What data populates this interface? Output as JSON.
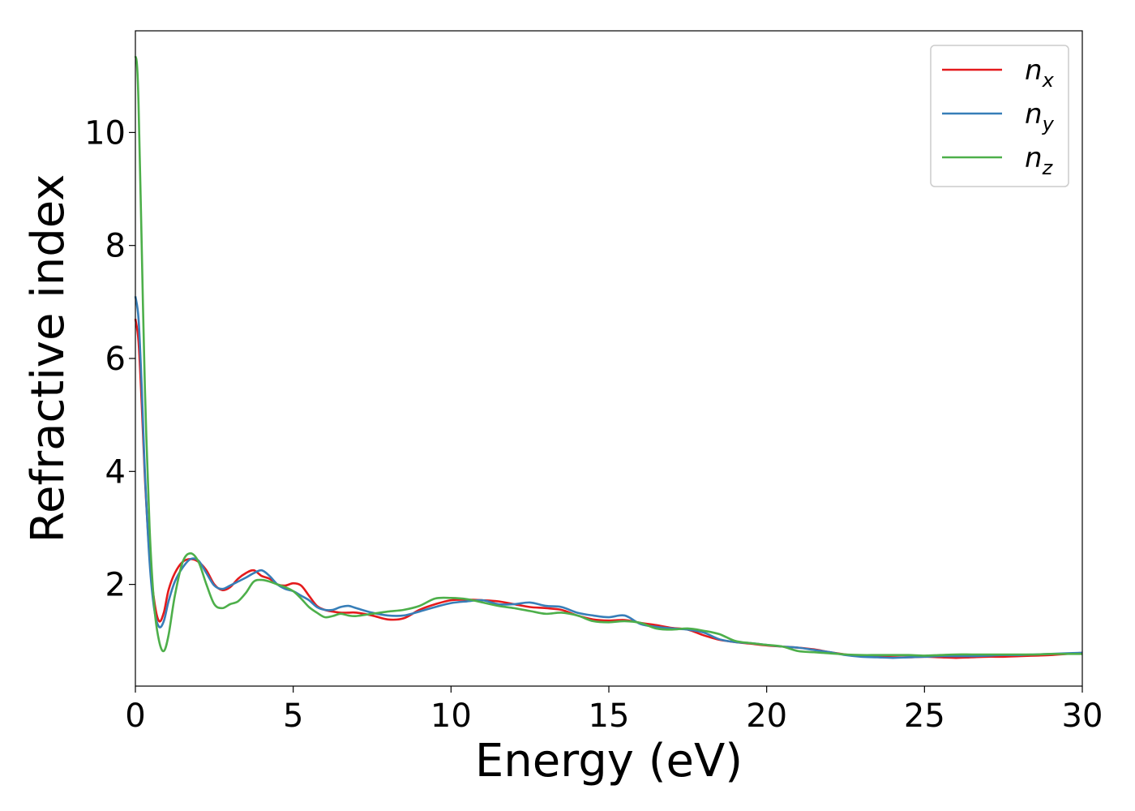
{
  "chart_data": {
    "type": "line",
    "xlabel": "Energy (eV)",
    "ylabel": "Refractive index",
    "xlim": [
      0,
      30
    ],
    "ylim": [
      0.2,
      11.8
    ],
    "xticks": [
      0,
      5,
      10,
      15,
      20,
      25,
      30
    ],
    "yticks": [
      2,
      4,
      6,
      8,
      10
    ],
    "grid": false,
    "legend_position": "top-right",
    "series": [
      {
        "name": "n_x",
        "label_main": "n",
        "label_sub": "x",
        "color": "#e41a1c",
        "x": [
          0,
          0.1,
          0.2,
          0.3,
          0.45,
          0.6,
          0.75,
          0.9,
          1.05,
          1.25,
          1.5,
          1.75,
          2.0,
          2.25,
          2.5,
          2.75,
          3.0,
          3.25,
          3.5,
          3.75,
          4.0,
          4.25,
          4.5,
          4.75,
          5.0,
          5.25,
          5.5,
          5.75,
          6.0,
          6.25,
          6.5,
          6.75,
          7.0,
          7.5,
          8.0,
          8.5,
          9.0,
          9.5,
          10.0,
          10.5,
          11.0,
          11.5,
          12.0,
          12.5,
          13.0,
          13.5,
          14.0,
          14.5,
          15.0,
          15.5,
          16.0,
          16.5,
          17.0,
          17.5,
          18.0,
          18.5,
          19.0,
          19.5,
          20.0,
          20.5,
          21.0,
          21.5,
          22.0,
          22.5,
          23.0,
          23.5,
          24.0,
          24.5,
          25.0,
          25.5,
          26.0,
          26.5,
          27.0,
          27.5,
          28.0,
          28.5,
          29.0,
          29.5,
          30.0
        ],
        "y": [
          6.7,
          6.3,
          5.2,
          3.9,
          2.5,
          1.7,
          1.35,
          1.5,
          1.9,
          2.2,
          2.4,
          2.45,
          2.4,
          2.25,
          2.0,
          1.9,
          1.95,
          2.1,
          2.2,
          2.25,
          2.15,
          2.1,
          2.0,
          1.98,
          2.02,
          1.98,
          1.8,
          1.62,
          1.55,
          1.52,
          1.5,
          1.5,
          1.5,
          1.45,
          1.38,
          1.4,
          1.55,
          1.65,
          1.72,
          1.73,
          1.72,
          1.7,
          1.65,
          1.6,
          1.58,
          1.55,
          1.45,
          1.38,
          1.36,
          1.37,
          1.32,
          1.28,
          1.23,
          1.2,
          1.1,
          1.02,
          0.98,
          0.95,
          0.92,
          0.9,
          0.88,
          0.85,
          0.8,
          0.76,
          0.74,
          0.72,
          0.71,
          0.71,
          0.72,
          0.71,
          0.7,
          0.71,
          0.72,
          0.72,
          0.73,
          0.74,
          0.75,
          0.77,
          0.79
        ]
      },
      {
        "name": "n_y",
        "label_main": "n",
        "label_sub": "y",
        "color": "#377eb8",
        "x": [
          0,
          0.1,
          0.2,
          0.3,
          0.45,
          0.6,
          0.75,
          0.9,
          1.05,
          1.25,
          1.5,
          1.75,
          2.0,
          2.25,
          2.5,
          2.75,
          3.0,
          3.25,
          3.5,
          3.75,
          4.0,
          4.25,
          4.5,
          4.75,
          5.0,
          5.25,
          5.5,
          5.75,
          6.0,
          6.25,
          6.5,
          6.75,
          7.0,
          7.5,
          8.0,
          8.5,
          9.0,
          9.5,
          10.0,
          10.5,
          11.0,
          11.5,
          12.0,
          12.5,
          13.0,
          13.5,
          14.0,
          14.5,
          15.0,
          15.5,
          16.0,
          16.5,
          17.0,
          17.5,
          18.0,
          18.5,
          19.0,
          19.5,
          20.0,
          20.5,
          21.0,
          21.5,
          22.0,
          22.5,
          23.0,
          23.5,
          24.0,
          24.5,
          25.0,
          25.5,
          26.0,
          26.5,
          27.0,
          27.5,
          28.0,
          28.5,
          29.0,
          29.5,
          30.0
        ],
        "y": [
          7.1,
          6.7,
          5.5,
          4.0,
          2.4,
          1.55,
          1.25,
          1.35,
          1.7,
          2.05,
          2.3,
          2.45,
          2.42,
          2.2,
          1.98,
          1.92,
          1.98,
          2.05,
          2.12,
          2.2,
          2.25,
          2.15,
          2.0,
          1.92,
          1.88,
          1.8,
          1.72,
          1.6,
          1.55,
          1.55,
          1.6,
          1.62,
          1.58,
          1.5,
          1.45,
          1.45,
          1.52,
          1.6,
          1.67,
          1.7,
          1.72,
          1.65,
          1.65,
          1.68,
          1.62,
          1.6,
          1.5,
          1.45,
          1.42,
          1.45,
          1.3,
          1.25,
          1.22,
          1.2,
          1.15,
          1.03,
          0.98,
          0.96,
          0.93,
          0.9,
          0.88,
          0.84,
          0.8,
          0.75,
          0.72,
          0.71,
          0.7,
          0.71,
          0.72,
          0.73,
          0.73,
          0.73,
          0.74,
          0.75,
          0.75,
          0.76,
          0.77,
          0.78,
          0.79
        ]
      },
      {
        "name": "n_z",
        "label_main": "n",
        "label_sub": "z",
        "color": "#4daf4a",
        "x": [
          0,
          0.05,
          0.1,
          0.2,
          0.3,
          0.45,
          0.6,
          0.75,
          0.9,
          1.05,
          1.25,
          1.5,
          1.75,
          2.0,
          2.25,
          2.5,
          2.75,
          3.0,
          3.25,
          3.5,
          3.75,
          4.0,
          4.25,
          4.5,
          4.75,
          5.0,
          5.25,
          5.5,
          5.75,
          6.0,
          6.25,
          6.5,
          6.75,
          7.0,
          7.5,
          8.0,
          8.5,
          9.0,
          9.5,
          10.0,
          10.5,
          11.0,
          11.5,
          12.0,
          12.5,
          13.0,
          13.5,
          14.0,
          14.5,
          15.0,
          15.5,
          16.0,
          16.5,
          17.0,
          17.5,
          18.0,
          18.5,
          19.0,
          19.5,
          20.0,
          20.5,
          21.0,
          21.5,
          22.0,
          22.5,
          23.0,
          23.5,
          24.0,
          24.5,
          25.0,
          25.5,
          26.0,
          26.5,
          27.0,
          27.5,
          28.0,
          28.5,
          29.0,
          29.5,
          30.0
        ],
        "y": [
          11.35,
          11.2,
          10.5,
          8.0,
          5.5,
          3.0,
          1.6,
          1.0,
          0.82,
          1.1,
          1.8,
          2.4,
          2.55,
          2.4,
          2.0,
          1.65,
          1.58,
          1.65,
          1.7,
          1.85,
          2.05,
          2.08,
          2.05,
          2.0,
          1.95,
          1.88,
          1.75,
          1.6,
          1.5,
          1.42,
          1.44,
          1.48,
          1.45,
          1.44,
          1.48,
          1.52,
          1.55,
          1.62,
          1.75,
          1.76,
          1.74,
          1.68,
          1.62,
          1.58,
          1.53,
          1.48,
          1.5,
          1.45,
          1.35,
          1.33,
          1.35,
          1.32,
          1.22,
          1.2,
          1.22,
          1.18,
          1.12,
          1.0,
          0.96,
          0.93,
          0.9,
          0.82,
          0.8,
          0.78,
          0.76,
          0.75,
          0.75,
          0.75,
          0.75,
          0.74,
          0.75,
          0.76,
          0.76,
          0.76,
          0.76,
          0.76,
          0.76,
          0.77,
          0.77,
          0.77
        ]
      }
    ]
  }
}
